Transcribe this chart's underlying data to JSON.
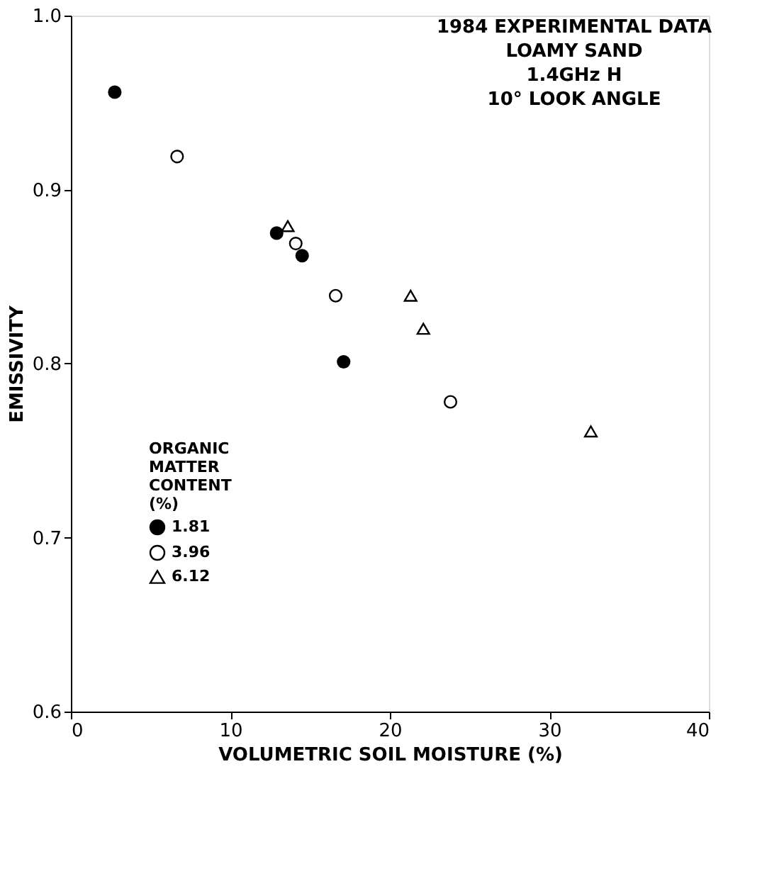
{
  "chart_data": {
    "type": "scatter",
    "title": "1984 EXPERIMENTAL DATA",
    "annotations": [
      "LOAMY SAND",
      "1.4GHz H",
      "10° LOOK ANGLE"
    ],
    "xlabel": "VOLUMETRIC SOIL MOISTURE (%)",
    "ylabel": "EMISSIVITY",
    "legend_title": "ORGANIC\nMATTER\nCONTENT\n(%)",
    "legend": "bottom left",
    "grid": false,
    "xlim": [
      0,
      40
    ],
    "xticks": [
      0,
      10,
      20,
      30,
      40
    ],
    "ylim": [
      0.6,
      1.0
    ],
    "yticks": [
      0.6,
      0.7,
      0.8,
      0.9,
      {
        "value": 1,
        "label": "1.0"
      }
    ],
    "series": [
      {
        "name": "1.81",
        "color": "#000000",
        "marker": "circle",
        "x": [
          2.75,
          12.9,
          14.5,
          17.1
        ],
        "values": [
          0.956,
          0.875,
          0.862,
          0.801
        ]
      },
      {
        "name": "3.96",
        "color": "#000000",
        "marker": "circle",
        "x": [
          6.66,
          14.1,
          16.6,
          23.8
        ],
        "values": [
          0.919,
          0.869,
          0.839,
          0.778
        ]
      },
      {
        "name": "6.12",
        "color": "#000000",
        "marker": "triangle",
        "x": [
          13.6,
          21.3,
          22.1,
          32.6
        ],
        "values": [
          0.879,
          0.839,
          0.82,
          0.761
        ]
      }
    ]
  }
}
